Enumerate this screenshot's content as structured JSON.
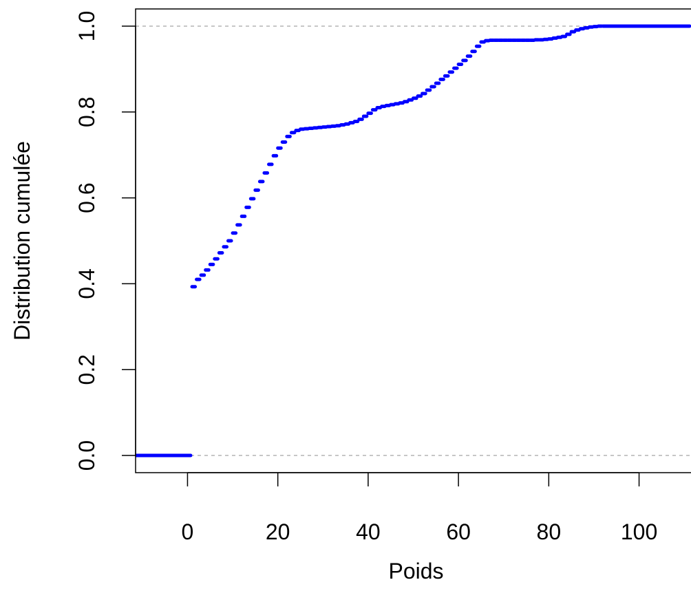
{
  "chart_data": {
    "type": "step",
    "xlabel": "Poids",
    "ylabel": "Distribution cumulée",
    "xlim": [
      -11.5,
      111.5
    ],
    "ylim": [
      -0.04,
      1.04
    ],
    "x_ticks": [
      0,
      20,
      40,
      60,
      80,
      100
    ],
    "x_tick_labels": [
      "0",
      "20",
      "40",
      "60",
      "80",
      "100"
    ],
    "y_ticks": [
      0.0,
      0.2,
      0.4,
      0.6,
      0.8,
      1.0
    ],
    "y_tick_labels": [
      "0.0",
      "0.2",
      "0.4",
      "0.6",
      "0.8",
      "1.0"
    ],
    "reference_lines": [
      0,
      1
    ],
    "series": [
      {
        "color": "#0000ff",
        "x": [
          -11.5,
          1,
          2,
          3,
          4,
          5,
          6,
          7,
          8,
          9,
          10,
          11,
          12,
          13,
          14,
          15,
          16,
          17,
          18,
          19,
          20,
          21,
          22,
          23,
          24,
          25,
          26,
          27,
          28,
          29,
          30,
          31,
          32,
          33,
          34,
          35,
          36,
          37,
          38,
          39,
          40,
          41,
          42,
          43,
          44,
          45,
          46,
          47,
          48,
          49,
          50,
          51,
          52,
          53,
          54,
          55,
          56,
          57,
          58,
          59,
          60,
          61,
          62,
          63,
          64,
          65,
          66,
          67,
          68,
          69,
          70,
          71,
          72,
          73,
          74,
          75,
          76,
          77,
          78,
          79,
          80,
          81,
          82,
          83,
          84,
          85,
          86,
          87,
          88,
          89,
          90,
          91,
          92
        ],
        "y": [
          0.0,
          0.393,
          0.41,
          0.42,
          0.432,
          0.445,
          0.458,
          0.472,
          0.486,
          0.5,
          0.518,
          0.537,
          0.557,
          0.578,
          0.598,
          0.618,
          0.638,
          0.658,
          0.678,
          0.698,
          0.716,
          0.73,
          0.743,
          0.752,
          0.757,
          0.76,
          0.761,
          0.762,
          0.763,
          0.764,
          0.765,
          0.766,
          0.767,
          0.768,
          0.77,
          0.772,
          0.775,
          0.778,
          0.783,
          0.79,
          0.797,
          0.805,
          0.81,
          0.813,
          0.815,
          0.817,
          0.819,
          0.821,
          0.824,
          0.828,
          0.832,
          0.837,
          0.843,
          0.851,
          0.859,
          0.867,
          0.876,
          0.884,
          0.893,
          0.902,
          0.911,
          0.92,
          0.93,
          0.941,
          0.953,
          0.963,
          0.966,
          0.967,
          0.967,
          0.967,
          0.967,
          0.967,
          0.967,
          0.967,
          0.967,
          0.967,
          0.967,
          0.968,
          0.968,
          0.969,
          0.97,
          0.972,
          0.974,
          0.976,
          0.981,
          0.987,
          0.991,
          0.994,
          0.996,
          0.998,
          0.999,
          1.0,
          1.0
        ],
        "x_end": 111.5
      }
    ]
  }
}
